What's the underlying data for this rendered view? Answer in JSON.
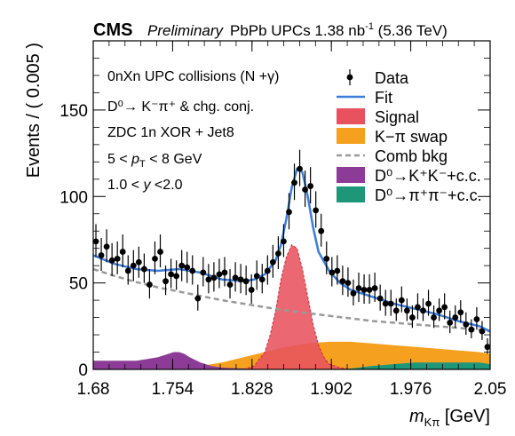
{
  "header": {
    "cms": "CMS",
    "preliminary": "Preliminary",
    "lumi_a": "PbPb UPCs 1.38 nb",
    "lumi_sup": "-1",
    "lumi_b": " (5.36 TeV)"
  },
  "annotations": [
    "0nXn UPC collisions (N +γ)",
    "D⁰→ K⁻π⁺ & chg. conj.",
    "ZDC 1n XOR + Jet8",
    "5 < pT < 8 GeV",
    "1.0 < y <2.0"
  ],
  "colors": {
    "data": "#000000",
    "fit": "#3c7ddc",
    "signal": "#e8525e",
    "swap": "#f5a01e",
    "comb": "#999999",
    "kk": "#8c3c96",
    "pipi": "#1e9678"
  },
  "chart_data": {
    "type": "scatter",
    "xlabel": "mKπ [GeV]",
    "ylabel": "Events / ( 0.005 )",
    "xlim": [
      1.68,
      2.05
    ],
    "ylim": [
      0,
      190
    ],
    "xticks": [
      "1.68",
      "1.754",
      "1.828",
      "1.902",
      "1.976",
      "2.05"
    ],
    "yticks": [
      "0",
      "50",
      "100",
      "150"
    ],
    "legend": [
      {
        "key": "data",
        "label": "Data",
        "style": "marker"
      },
      {
        "key": "fit",
        "label": "Fit",
        "style": "line"
      },
      {
        "key": "signal",
        "label": "Signal",
        "style": "box"
      },
      {
        "key": "swap",
        "label": "K−π swap",
        "style": "box"
      },
      {
        "key": "comb",
        "label": "Comb bkg",
        "style": "dashed"
      },
      {
        "key": "kk",
        "label": "D⁰→K⁺K⁻+c.c.",
        "style": "box"
      },
      {
        "key": "pipi",
        "label": "D⁰→π⁺π⁻+c.c.",
        "style": "box"
      }
    ],
    "data_points": {
      "x": [
        1.6825,
        1.6875,
        1.6925,
        1.6975,
        1.7025,
        1.7075,
        1.7125,
        1.7175,
        1.7225,
        1.7275,
        1.7325,
        1.7375,
        1.7425,
        1.7475,
        1.7525,
        1.7575,
        1.7625,
        1.7675,
        1.7725,
        1.7775,
        1.7825,
        1.7875,
        1.7925,
        1.7975,
        1.8025,
        1.8075,
        1.8125,
        1.8175,
        1.8225,
        1.8275,
        1.8325,
        1.8375,
        1.8425,
        1.8475,
        1.8525,
        1.8575,
        1.8625,
        1.8675,
        1.8725,
        1.8775,
        1.8825,
        1.8875,
        1.8925,
        1.8975,
        1.9025,
        1.9075,
        1.9125,
        1.9175,
        1.9225,
        1.9275,
        1.9325,
        1.9375,
        1.9425,
        1.9475,
        1.9525,
        1.9575,
        1.9625,
        1.9675,
        1.9725,
        1.9775,
        1.9825,
        1.9875,
        1.9925,
        1.9975,
        2.0025,
        2.0075,
        2.0125,
        2.0175,
        2.0225,
        2.0275,
        2.0325,
        2.0375,
        2.0425,
        2.0475
      ],
      "y": [
        74,
        66,
        71,
        63,
        64,
        68,
        57,
        60,
        62,
        58,
        49,
        64,
        68,
        51,
        55,
        54,
        60,
        59,
        57,
        41,
        56,
        52,
        53,
        55,
        56,
        49,
        53,
        52,
        51,
        46,
        54,
        52,
        57,
        62,
        67,
        74,
        91,
        108,
        116,
        104,
        106,
        92,
        80,
        64,
        56,
        57,
        51,
        50,
        44,
        47,
        46,
        46,
        47,
        41,
        38,
        38,
        34,
        40,
        34,
        30,
        36,
        34,
        38,
        30,
        34,
        36,
        27,
        30,
        33,
        26,
        23,
        29,
        22,
        13
      ],
      "err_up": [
        10,
        10,
        10,
        10,
        10,
        10,
        9,
        9,
        9,
        9,
        9,
        10,
        10,
        9,
        9,
        9,
        9,
        9,
        9,
        8,
        9,
        9,
        9,
        9,
        9,
        9,
        9,
        9,
        9,
        9,
        9,
        9,
        9,
        10,
        10,
        10,
        11,
        11,
        11,
        11,
        11,
        11,
        10,
        10,
        9,
        9,
        9,
        9,
        8,
        9,
        9,
        9,
        9,
        8,
        8,
        8,
        7,
        8,
        7,
        7,
        8,
        7,
        8,
        7,
        7,
        8,
        7,
        7,
        7,
        7,
        6,
        7,
        6,
        5
      ],
      "err_low": [
        9,
        9,
        9,
        9,
        9,
        9,
        8,
        9,
        9,
        8,
        8,
        9,
        9,
        8,
        8,
        8,
        9,
        9,
        8,
        7,
        8,
        8,
        8,
        8,
        8,
        8,
        8,
        8,
        8,
        8,
        8,
        8,
        8,
        9,
        9,
        9,
        10,
        10,
        10,
        10,
        10,
        10,
        9,
        9,
        8,
        8,
        8,
        8,
        7,
        8,
        8,
        8,
        8,
        7,
        7,
        7,
        6,
        7,
        6,
        6,
        7,
        6,
        7,
        6,
        6,
        7,
        6,
        6,
        6,
        6,
        5,
        6,
        5,
        4
      ]
    },
    "fit_curve": {
      "x": [
        1.68,
        1.7,
        1.72,
        1.74,
        1.76,
        1.78,
        1.8,
        1.82,
        1.83,
        1.84,
        1.85,
        1.855,
        1.86,
        1.865,
        1.87,
        1.875,
        1.88,
        1.885,
        1.89,
        1.9,
        1.91,
        1.92,
        1.94,
        1.96,
        1.98,
        2.0,
        2.02,
        2.04,
        2.05
      ],
      "y": [
        66,
        61,
        58,
        57,
        58,
        56,
        52,
        51,
        52,
        55,
        63,
        72,
        87,
        105,
        116,
        114,
        100,
        82,
        68,
        57,
        50,
        46,
        42,
        38,
        35,
        32,
        28,
        25,
        22
      ]
    },
    "comb_bkg": {
      "x": [
        1.68,
        1.7,
        1.72,
        1.74,
        1.76,
        1.78,
        1.8,
        1.82,
        1.84,
        1.86,
        1.88,
        1.9,
        1.92,
        1.94,
        1.96,
        1.98,
        2.0,
        2.02,
        2.04,
        2.05
      ],
      "y": [
        58,
        54,
        50.5,
        47.5,
        45,
        42.5,
        40,
        38,
        36,
        34,
        32.5,
        31,
        29.5,
        28,
        27,
        26,
        25,
        24,
        23,
        22
      ]
    },
    "signal": {
      "x": [
        1.82,
        1.83,
        1.84,
        1.845,
        1.85,
        1.855,
        1.86,
        1.865,
        1.87,
        1.875,
        1.88,
        1.885,
        1.89,
        1.895,
        1.9,
        1.91,
        1.92
      ],
      "y": [
        0,
        2,
        10,
        20,
        34,
        52,
        65,
        72,
        70,
        58,
        42,
        26,
        14,
        7,
        3,
        1,
        0
      ]
    },
    "swap": {
      "x": [
        1.68,
        1.72,
        1.76,
        1.78,
        1.8,
        1.82,
        1.84,
        1.86,
        1.88,
        1.9,
        1.92,
        1.94,
        1.96,
        1.98,
        2.0,
        2.02,
        2.04,
        2.05
      ],
      "y": [
        0,
        0,
        1,
        2,
        4,
        7,
        10,
        13,
        15,
        16,
        16,
        15,
        14,
        13,
        12,
        11,
        10,
        9
      ]
    },
    "kk": {
      "x": [
        1.68,
        1.7,
        1.72,
        1.73,
        1.74,
        1.75,
        1.755,
        1.76,
        1.765,
        1.77,
        1.78,
        1.79,
        1.8,
        1.82,
        1.84,
        1.86,
        1.88,
        1.9,
        1.92
      ],
      "y": [
        5,
        5,
        5,
        6,
        7,
        9,
        10,
        10,
        9,
        7,
        4,
        2,
        1,
        0.5,
        0.3,
        0.2,
        0.1,
        0,
        0
      ]
    },
    "pipi": {
      "x": [
        1.9,
        1.92,
        1.94,
        1.96,
        1.98,
        2.0,
        2.02,
        2.04,
        2.05
      ],
      "y": [
        0,
        0.5,
        2,
        3,
        4,
        4,
        4,
        4,
        3
      ]
    }
  }
}
